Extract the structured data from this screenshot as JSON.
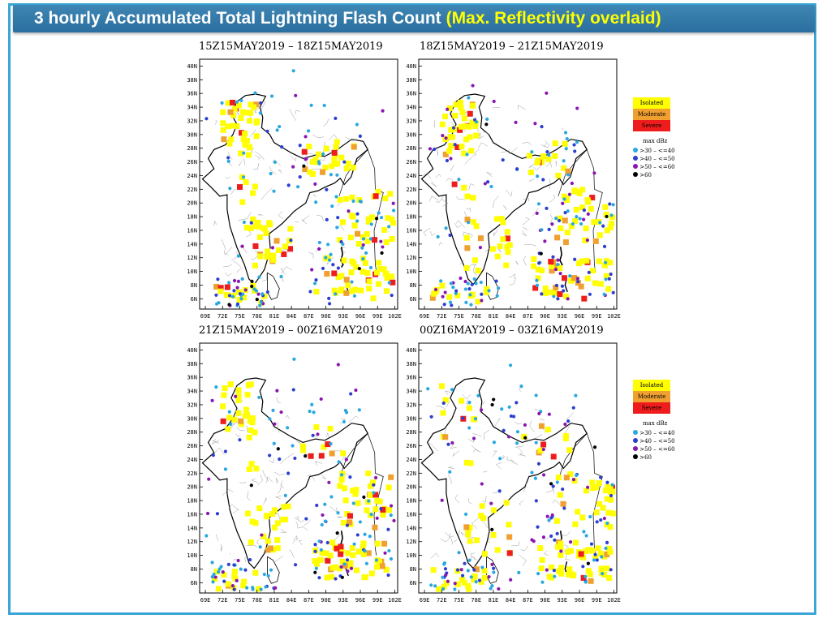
{
  "title": {
    "main": "3 hourly Accumulated Total Lightning Flash Count",
    "highlight": "(Max. Reflectivity overlaid)"
  },
  "colors": {
    "frame": "#3aa6d8",
    "title_bg": "#2f78a8",
    "isolated": "#ffff00",
    "moderate": "#f0a030",
    "severe": "#ee1c1c",
    "dbz30": "#29a8e0",
    "dbz40": "#2c3fd0",
    "dbz50": "#8a16b0",
    "dbz60": "#000000"
  },
  "panels": [
    {
      "id": "p1",
      "title": "15Z15MAY2019  –  18Z15MAY2019"
    },
    {
      "id": "p2",
      "title": "18Z15MAY2019  –  21Z15MAY2019"
    },
    {
      "id": "p3",
      "title": "21Z15MAY2019  –  00Z16MAY2019"
    },
    {
      "id": "p4",
      "title": "00Z16MAY2019  –  03Z16MAY2019"
    }
  ],
  "axes": {
    "lat_labels": [
      "40N",
      "38N",
      "36N",
      "34N",
      "32N",
      "30N",
      "28N",
      "26N",
      "24N",
      "22N",
      "20N",
      "18N",
      "16N",
      "14N",
      "12N",
      "10N",
      "8N",
      "6N"
    ],
    "lon_labels": [
      "69E",
      "72E",
      "75E",
      "78E",
      "81E",
      "84E",
      "87E",
      "90E",
      "93E",
      "96E",
      "99E",
      "102E"
    ]
  },
  "legend": {
    "classes": [
      "Isolated",
      "Moderate",
      "Severe"
    ],
    "dbz_title": "max dBz",
    "dbz_labels": [
      ">30 – <=40",
      ">40 – <=50",
      ">50 – <=60",
      ">60"
    ]
  }
}
